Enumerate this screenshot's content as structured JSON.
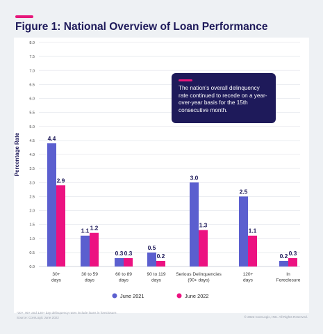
{
  "header": {
    "title": "Figure 1: National Overview of Loan Performance"
  },
  "callout": {
    "text": "The nation's overall delinquency rate continued to recede on a year-over-year basis for the 15th consecutive month."
  },
  "footer": {
    "footnote_line1": "*30+, 90+ and 120+ day delinquency rates include loans in foreclosure.",
    "footnote_line2": "Source: CoreLogic June 2022",
    "copyright": "© 2022 CoreLogic, INC. All Rights Reserved."
  },
  "colors": {
    "accent": "#e6177a",
    "navy": "#1e1a5a",
    "series_2021": "#5b5fcf",
    "series_2022": "#ec1281"
  },
  "chart_data": {
    "type": "bar",
    "title": "Figure 1: National Overview of Loan Performance",
    "xlabel": "",
    "ylabel": "Percentage Rate",
    "ylim": [
      0,
      8
    ],
    "yticks": [
      "0.0",
      "0.5",
      "1.0",
      "1.5",
      "2.0",
      "2.5",
      "3.0",
      "3.5",
      "4.0",
      "4.5",
      "5.0",
      "5.5",
      "6.0",
      "6.5",
      "7.0",
      "7.5",
      "8.0"
    ],
    "grid": true,
    "legend_position": "bottom",
    "categories": [
      [
        "30+",
        "days"
      ],
      [
        "30 to 59",
        "days"
      ],
      [
        "60 to 89",
        "days"
      ],
      [
        "90 to 119",
        "days"
      ],
      [
        "Serious Delinquencies",
        "(90+ days)"
      ],
      [
        "120+",
        "days"
      ],
      [
        "In",
        "Foreclosure"
      ]
    ],
    "series": [
      {
        "name": "June 2021",
        "values": [
          4.4,
          1.1,
          0.3,
          0.5,
          3.0,
          2.5,
          0.2
        ],
        "labels": [
          "4.4",
          "1.1",
          "0.3",
          "0.5",
          "3.0",
          "2.5",
          "0.2"
        ]
      },
      {
        "name": "June 2022",
        "values": [
          2.9,
          1.2,
          0.3,
          0.2,
          1.3,
          1.1,
          0.3
        ],
        "labels": [
          "2.9",
          "1.2",
          "0.3",
          "0.2",
          "1.3",
          "1.1",
          "0.3"
        ]
      }
    ]
  }
}
